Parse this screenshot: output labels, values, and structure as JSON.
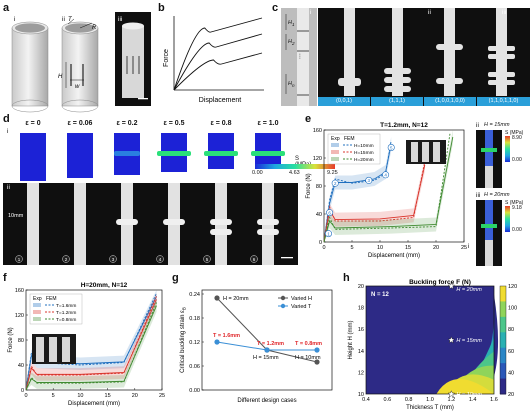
{
  "panels": {
    "a": {
      "letter": "a",
      "sub_i": "i",
      "sub_ii": "ii",
      "sub_iii": "iii",
      "T": "T",
      "R": "R",
      "H": "H",
      "w": "w"
    },
    "b": {
      "letter": "b",
      "ylabel": "Force",
      "xlabel": "Displacement"
    },
    "c": {
      "letter": "c",
      "sub_i": "i",
      "sub_ii": "ii",
      "sub_iii": "iii",
      "H1": "H",
      "H1sub": "1",
      "H2": "H",
      "H2sub": "2",
      "Hn": "H",
      "Hnsub": "n",
      "codes": [
        "(0,0,1)",
        "(1,1,1)",
        "(1,0,0,1,0,0)",
        "(1,1,0,1,1,0)"
      ]
    },
    "d": {
      "letter": "d",
      "sub_i": "i",
      "sub_ii": "ii",
      "strains": [
        "ε = 0",
        "ε = 0.06",
        "ε = 0.2",
        "ε = 0.5",
        "ε = 0.8",
        "ε = 1.0"
      ],
      "stress_title": "S (MPa)",
      "stress_ticks": [
        "0.00",
        "4.63",
        "9.25"
      ],
      "scale": "10mm",
      "nums": [
        "1",
        "2",
        "3",
        "4",
        "5",
        "6"
      ]
    },
    "e": {
      "letter": "e",
      "title": "T=1.2mm, N=12",
      "sub_ii": "ii",
      "sub_iii": "iii",
      "sub_i": "i",
      "h15": "H = 15mm",
      "h20": "H = 20mm",
      "s1": "S (MPa)",
      "s1max": "8.90",
      "s1min": "0.00",
      "s2": "S (MPa)",
      "s2max": "9.18",
      "s2min": "0.00"
    },
    "f": {
      "letter": "f",
      "title": "H=20mm, N=12"
    },
    "g": {
      "letter": "g",
      "ylabel": "Critical buckling strain ε",
      "ylabel_sub": "B",
      "xlabel": "Different design cases",
      "legend": [
        "Varied H",
        "Varied T"
      ],
      "ann": [
        "H = 20mm",
        "T = 1.6mm",
        "T = 1.2mm",
        "T = 0.8mm",
        "H = 15mm",
        "H = 10mm"
      ]
    },
    "h": {
      "letter": "h",
      "title": "Buckling force F (N)",
      "N": "N = 12",
      "ann": [
        "H = 20mm",
        "H = 15mm",
        "H = 10mm"
      ]
    }
  },
  "chart_data": [
    {
      "id": "b",
      "type": "line",
      "title": "",
      "xlabel": "Displacement",
      "ylabel": "Force",
      "series": [
        {
          "values": [
            [
              0,
              0
            ],
            [
              0.35,
              0.62
            ],
            [
              0.42,
              0.58
            ],
            [
              1,
              0.72
            ]
          ]
        },
        {
          "values": [
            [
              0,
              0
            ],
            [
              0.4,
              0.47
            ],
            [
              0.48,
              0.43
            ],
            [
              1,
              0.56
            ]
          ]
        },
        {
          "values": [
            [
              0,
              0
            ],
            [
              0.45,
              0.3
            ],
            [
              0.54,
              0.26
            ],
            [
              1,
              0.37
            ]
          ]
        }
      ]
    },
    {
      "id": "e",
      "type": "line",
      "title": "T=1.2mm, N=12",
      "xlabel": "Displacement (mm)",
      "ylabel": "Force (N)",
      "xlim": [
        0,
        25
      ],
      "ylim": [
        0,
        160
      ],
      "xticks": [
        0,
        5,
        10,
        15,
        20,
        25
      ],
      "yticks": [
        0,
        40,
        80,
        120,
        160
      ],
      "legend_headers": [
        "Exp",
        "FEM"
      ],
      "series": [
        {
          "name": "H=10mm",
          "color": "#1f6fbf",
          "exp": [
            [
              0,
              0
            ],
            [
              1,
              55
            ],
            [
              2,
              85
            ],
            [
              5,
              85
            ],
            [
              9,
              90
            ],
            [
              11,
              100
            ],
            [
              12,
              140
            ]
          ],
          "fem": [
            [
              0,
              0
            ],
            [
              1,
              60
            ],
            [
              2,
              90
            ],
            [
              5,
              84
            ],
            [
              9,
              88
            ],
            [
              11,
              98
            ],
            [
              12,
              145
            ]
          ]
        },
        {
          "name": "H=15mm",
          "color": "#d9342b",
          "exp": [
            [
              0,
              0
            ],
            [
              1,
              45
            ],
            [
              2,
              32
            ],
            [
              10,
              33
            ],
            [
              16,
              38
            ],
            [
              18,
              110
            ]
          ],
          "fem": [
            [
              0,
              0
            ],
            [
              1,
              50
            ],
            [
              2,
              30
            ],
            [
              10,
              30
            ],
            [
              16,
              35
            ],
            [
              18,
              115
            ]
          ]
        },
        {
          "name": "H=20mm",
          "color": "#3f8a30",
          "exp": [
            [
              0,
              0
            ],
            [
              1,
              30
            ],
            [
              2,
              20
            ],
            [
              12,
              22
            ],
            [
              20,
              25
            ],
            [
              23,
              150
            ]
          ],
          "fem": [
            [
              0,
              0
            ],
            [
              1,
              35
            ],
            [
              2,
              18
            ],
            [
              12,
              20
            ],
            [
              20,
              22
            ],
            [
              22.5,
              155
            ]
          ]
        }
      ],
      "markers": [
        "1",
        "2",
        "3",
        "4",
        "5",
        "6"
      ]
    },
    {
      "id": "f",
      "type": "line",
      "title": "H=20mm, N=12",
      "xlabel": "Displacement (mm)",
      "ylabel": "Force (N)",
      "xlim": [
        0,
        25
      ],
      "ylim": [
        0,
        160
      ],
      "xticks": [
        0,
        5,
        10,
        15,
        20,
        25
      ],
      "yticks": [
        0,
        40,
        80,
        120,
        160
      ],
      "legend_headers": [
        "Exp",
        "FEM"
      ],
      "series": [
        {
          "name": "T=1.6mm",
          "color": "#1f6fbf",
          "exp": [
            [
              0,
              0
            ],
            [
              1,
              55
            ],
            [
              2,
              45
            ],
            [
              10,
              42
            ],
            [
              18,
              45
            ],
            [
              24,
              150
            ]
          ],
          "fem": [
            [
              0,
              0
            ],
            [
              1,
              60
            ],
            [
              2,
              44
            ],
            [
              10,
              40
            ],
            [
              18,
              44
            ],
            [
              24,
              155
            ]
          ]
        },
        {
          "name": "T=1.2mm",
          "color": "#d9342b",
          "exp": [
            [
              0,
              0
            ],
            [
              1,
              35
            ],
            [
              2,
              25
            ],
            [
              10,
              25
            ],
            [
              18,
              28
            ],
            [
              24,
              145
            ]
          ],
          "fem": [
            [
              0,
              0
            ],
            [
              1,
              38
            ],
            [
              2,
              24
            ],
            [
              10,
              24
            ],
            [
              18,
              27
            ],
            [
              24,
              150
            ]
          ]
        },
        {
          "name": "T=0.8mm",
          "color": "#3f8a30",
          "exp": [
            [
              0,
              0
            ],
            [
              1,
              18
            ],
            [
              2,
              12
            ],
            [
              10,
              12
            ],
            [
              18,
              14
            ],
            [
              24,
              135
            ]
          ],
          "fem": [
            [
              0,
              0
            ],
            [
              1,
              20
            ],
            [
              2,
              11
            ],
            [
              10,
              11
            ],
            [
              18,
              13
            ],
            [
              24,
              140
            ]
          ]
        }
      ]
    },
    {
      "id": "g",
      "type": "line",
      "xlabel": "Different design cases",
      "ylabel": "Critical buckling strain εB",
      "ylim": [
        0,
        0.25
      ],
      "yticks": [
        0.0,
        0.06,
        0.12,
        0.18,
        0.24
      ],
      "series": [
        {
          "name": "Varied H",
          "color": "#555555",
          "values": [
            [
              1,
              0.23
            ],
            [
              2,
              0.1
            ],
            [
              3,
              0.07
            ]
          ]
        },
        {
          "name": "Varied T",
          "color": "#3a8fd6",
          "values": [
            [
              1,
              0.12
            ],
            [
              2,
              0.1
            ],
            [
              3,
              0.1
            ]
          ]
        }
      ]
    },
    {
      "id": "h",
      "type": "heatmap",
      "title": "Buckling force F (N)",
      "xlabel": "Thickness T (mm)",
      "ylabel": "Height H (mm)",
      "xlim": [
        0.4,
        1.6
      ],
      "ylim": [
        10,
        20
      ],
      "xticks": [
        0.4,
        0.6,
        0.8,
        1.0,
        1.2,
        1.4,
        1.6
      ],
      "yticks": [
        10,
        12,
        14,
        16,
        18,
        20
      ],
      "colorbar": [
        20,
        40,
        60,
        80,
        100,
        120
      ],
      "points": [
        {
          "T": 1.2,
          "H": 20,
          "label": "H = 20mm"
        },
        {
          "T": 1.2,
          "H": 15,
          "label": "H = 15mm"
        },
        {
          "T": 1.2,
          "H": 10,
          "label": "H = 10mm"
        }
      ]
    }
  ]
}
